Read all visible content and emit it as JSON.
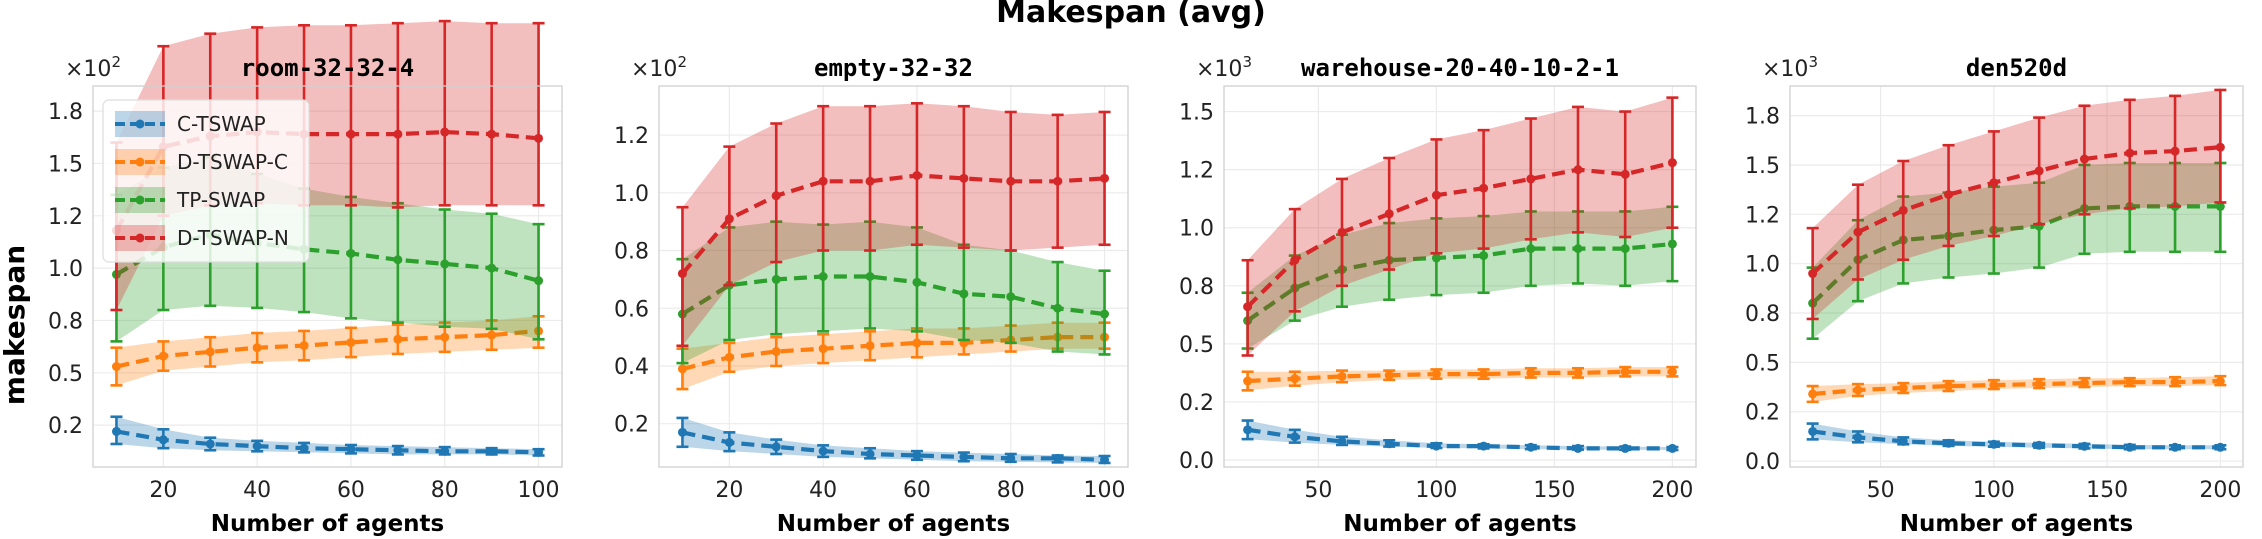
{
  "figure": {
    "suptitle": "Makespan (avg)",
    "ylabel": "makespan"
  },
  "legend": {
    "placement": "upper-left of first panel",
    "entries": [
      "C-TSWAP",
      "D-TSWAP-C",
      "TP-SWAP",
      "D-TSWAP-N"
    ]
  },
  "colors": {
    "C-TSWAP": "#1f77b4",
    "D-TSWAP-C": "#ff7f0e",
    "TP-SWAP": "#2ca02c",
    "D-TSWAP-N": "#d62728"
  },
  "chart_data": [
    {
      "type": "line",
      "title": "room-32-32-4",
      "xlabel": "Number of agents",
      "ylabel": "makespan",
      "multiplier_label": "×10",
      "multiplier_exp": "2",
      "grid": true,
      "x": [
        10,
        20,
        30,
        40,
        50,
        60,
        70,
        80,
        90,
        100
      ],
      "xticks": [
        20,
        40,
        60,
        80,
        100
      ],
      "xtick_labels": [
        "20",
        "40",
        "60",
        "80",
        "100"
      ],
      "xlim": [
        5,
        105
      ],
      "ylim": [
        0.05,
        1.87
      ],
      "yticks": [
        0.25,
        0.5,
        0.75,
        1.0,
        1.25,
        1.5,
        1.75
      ],
      "ytick_labels": [
        "0.2",
        "0.5",
        "0.8",
        "1.0",
        "1.2",
        "1.5",
        "1.8"
      ],
      "series": [
        {
          "name": "C-TSWAP",
          "values": [
            0.22,
            0.18,
            0.16,
            0.15,
            0.14,
            0.135,
            0.13,
            0.125,
            0.125,
            0.12
          ],
          "lower": [
            0.16,
            0.14,
            0.13,
            0.125,
            0.12,
            0.115,
            0.11,
            0.11,
            0.11,
            0.105
          ],
          "upper": [
            0.29,
            0.23,
            0.19,
            0.175,
            0.165,
            0.155,
            0.15,
            0.145,
            0.14,
            0.135
          ]
        },
        {
          "name": "D-TSWAP-C",
          "values": [
            0.53,
            0.58,
            0.6,
            0.62,
            0.63,
            0.645,
            0.66,
            0.67,
            0.68,
            0.7
          ],
          "lower": [
            0.44,
            0.51,
            0.53,
            0.55,
            0.56,
            0.575,
            0.59,
            0.6,
            0.61,
            0.62
          ],
          "upper": [
            0.62,
            0.65,
            0.67,
            0.69,
            0.7,
            0.715,
            0.73,
            0.74,
            0.75,
            0.77
          ]
        },
        {
          "name": "TP-SWAP",
          "values": [
            0.97,
            1.1,
            1.16,
            1.12,
            1.09,
            1.07,
            1.04,
            1.02,
            1.0,
            0.94
          ],
          "lower": [
            0.65,
            0.8,
            0.82,
            0.81,
            0.79,
            0.76,
            0.74,
            0.72,
            0.71,
            0.66
          ],
          "upper": [
            1.35,
            1.48,
            1.53,
            1.45,
            1.38,
            1.34,
            1.31,
            1.28,
            1.26,
            1.21
          ]
        },
        {
          "name": "D-TSWAP-N",
          "values": [
            1.18,
            1.58,
            1.63,
            1.65,
            1.64,
            1.64,
            1.64,
            1.65,
            1.64,
            1.62
          ],
          "lower": [
            0.8,
            1.25,
            1.3,
            1.31,
            1.3,
            1.3,
            1.29,
            1.3,
            1.3,
            1.3
          ],
          "upper": [
            1.6,
            2.06,
            2.12,
            2.15,
            2.16,
            2.16,
            2.17,
            2.18,
            2.17,
            2.17
          ]
        }
      ]
    },
    {
      "type": "line",
      "title": "empty-32-32",
      "xlabel": "Number of agents",
      "ylabel": "",
      "multiplier_label": "×10",
      "multiplier_exp": "2",
      "grid": true,
      "x": [
        10,
        20,
        30,
        40,
        50,
        60,
        70,
        80,
        90,
        100
      ],
      "xticks": [
        20,
        40,
        60,
        80,
        100
      ],
      "xtick_labels": [
        "20",
        "40",
        "60",
        "80",
        "100"
      ],
      "xlim": [
        5,
        105
      ],
      "ylim": [
        0.05,
        1.37
      ],
      "yticks": [
        0.2,
        0.4,
        0.6,
        0.8,
        1.0,
        1.2
      ],
      "ytick_labels": [
        "0.2",
        "0.4",
        "0.6",
        "0.8",
        "1.0",
        "1.2"
      ],
      "series": [
        {
          "name": "C-TSWAP",
          "values": [
            0.17,
            0.135,
            0.12,
            0.105,
            0.095,
            0.09,
            0.085,
            0.08,
            0.08,
            0.075
          ],
          "lower": [
            0.12,
            0.105,
            0.095,
            0.085,
            0.08,
            0.075,
            0.07,
            0.068,
            0.066,
            0.064
          ],
          "upper": [
            0.22,
            0.17,
            0.145,
            0.125,
            0.115,
            0.105,
            0.1,
            0.095,
            0.09,
            0.088
          ]
        },
        {
          "name": "D-TSWAP-C",
          "values": [
            0.39,
            0.43,
            0.45,
            0.46,
            0.47,
            0.48,
            0.48,
            0.49,
            0.5,
            0.5
          ],
          "lower": [
            0.32,
            0.38,
            0.4,
            0.41,
            0.42,
            0.43,
            0.44,
            0.45,
            0.46,
            0.46
          ],
          "upper": [
            0.46,
            0.48,
            0.5,
            0.51,
            0.52,
            0.53,
            0.53,
            0.54,
            0.55,
            0.55
          ]
        },
        {
          "name": "TP-SWAP",
          "values": [
            0.58,
            0.68,
            0.7,
            0.71,
            0.71,
            0.69,
            0.65,
            0.64,
            0.6,
            0.58
          ],
          "lower": [
            0.41,
            0.49,
            0.51,
            0.52,
            0.53,
            0.52,
            0.49,
            0.48,
            0.45,
            0.44
          ],
          "upper": [
            0.77,
            0.88,
            0.9,
            0.89,
            0.9,
            0.88,
            0.82,
            0.8,
            0.76,
            0.73
          ]
        },
        {
          "name": "D-TSWAP-N",
          "values": [
            0.72,
            0.91,
            0.99,
            1.04,
            1.04,
            1.06,
            1.05,
            1.04,
            1.04,
            1.05
          ],
          "lower": [
            0.47,
            0.68,
            0.76,
            0.8,
            0.8,
            0.82,
            0.81,
            0.8,
            0.81,
            0.82
          ],
          "upper": [
            0.95,
            1.16,
            1.24,
            1.3,
            1.3,
            1.31,
            1.3,
            1.28,
            1.27,
            1.28
          ]
        }
      ]
    },
    {
      "type": "line",
      "title": "warehouse-20-40-10-2-1",
      "xlabel": "Number of agents",
      "ylabel": "",
      "multiplier_label": "×10",
      "multiplier_exp": "3",
      "grid": true,
      "x": [
        20,
        40,
        60,
        80,
        100,
        120,
        140,
        160,
        180,
        200
      ],
      "xticks": [
        50,
        100,
        150,
        200
      ],
      "xtick_labels": [
        "50",
        "100",
        "150",
        "200"
      ],
      "xlim": [
        10,
        210
      ],
      "ylim": [
        -0.03,
        1.61
      ],
      "yticks": [
        0.0,
        0.25,
        0.5,
        0.75,
        1.0,
        1.25,
        1.5
      ],
      "ytick_labels": [
        "0.0",
        "0.2",
        "0.5",
        "0.8",
        "1.0",
        "1.2",
        "1.5"
      ],
      "series": [
        {
          "name": "C-TSWAP",
          "values": [
            0.13,
            0.1,
            0.08,
            0.07,
            0.06,
            0.06,
            0.055,
            0.05,
            0.05,
            0.05
          ],
          "lower": [
            0.09,
            0.075,
            0.065,
            0.058,
            0.052,
            0.05,
            0.047,
            0.045,
            0.044,
            0.043
          ],
          "upper": [
            0.17,
            0.13,
            0.1,
            0.085,
            0.072,
            0.068,
            0.064,
            0.06,
            0.058,
            0.056
          ]
        },
        {
          "name": "D-TSWAP-C",
          "values": [
            0.34,
            0.35,
            0.36,
            0.365,
            0.37,
            0.37,
            0.375,
            0.375,
            0.38,
            0.38
          ],
          "lower": [
            0.3,
            0.32,
            0.335,
            0.345,
            0.35,
            0.35,
            0.355,
            0.355,
            0.36,
            0.36
          ],
          "upper": [
            0.38,
            0.38,
            0.385,
            0.385,
            0.39,
            0.39,
            0.395,
            0.395,
            0.4,
            0.4
          ]
        },
        {
          "name": "TP-SWAP",
          "values": [
            0.6,
            0.74,
            0.82,
            0.86,
            0.87,
            0.88,
            0.91,
            0.91,
            0.91,
            0.93
          ],
          "lower": [
            0.48,
            0.6,
            0.66,
            0.69,
            0.71,
            0.72,
            0.75,
            0.76,
            0.75,
            0.77
          ],
          "upper": [
            0.72,
            0.88,
            0.97,
            1.02,
            1.04,
            1.05,
            1.07,
            1.07,
            1.07,
            1.09
          ]
        },
        {
          "name": "D-TSWAP-N",
          "values": [
            0.66,
            0.86,
            0.98,
            1.06,
            1.14,
            1.17,
            1.21,
            1.25,
            1.23,
            1.28
          ],
          "lower": [
            0.45,
            0.64,
            0.75,
            0.82,
            0.89,
            0.91,
            0.95,
            0.98,
            0.96,
            1.0
          ],
          "upper": [
            0.86,
            1.08,
            1.21,
            1.3,
            1.38,
            1.42,
            1.47,
            1.52,
            1.5,
            1.56
          ]
        }
      ]
    },
    {
      "type": "line",
      "title": "den520d",
      "xlabel": "Number of agents",
      "ylabel": "",
      "multiplier_label": "×10",
      "multiplier_exp": "3",
      "grid": true,
      "x": [
        20,
        40,
        60,
        80,
        100,
        120,
        140,
        160,
        180,
        200
      ],
      "xticks": [
        50,
        100,
        150,
        200
      ],
      "xtick_labels": [
        "50",
        "100",
        "150",
        "200"
      ],
      "xlim": [
        10,
        210
      ],
      "ylim": [
        -0.03,
        1.9
      ],
      "yticks": [
        0.0,
        0.25,
        0.5,
        0.75,
        1.0,
        1.25,
        1.5,
        1.75
      ],
      "ytick_labels": [
        "0.0",
        "0.2",
        "0.5",
        "0.8",
        "1.0",
        "1.2",
        "1.5",
        "1.8"
      ],
      "series": [
        {
          "name": "C-TSWAP",
          "values": [
            0.15,
            0.12,
            0.1,
            0.09,
            0.085,
            0.08,
            0.075,
            0.07,
            0.07,
            0.07
          ],
          "lower": [
            0.11,
            0.095,
            0.085,
            0.077,
            0.073,
            0.068,
            0.064,
            0.06,
            0.06,
            0.06
          ],
          "upper": [
            0.19,
            0.15,
            0.12,
            0.105,
            0.098,
            0.092,
            0.087,
            0.082,
            0.08,
            0.08
          ]
        },
        {
          "name": "D-TSWAP-C",
          "values": [
            0.34,
            0.36,
            0.37,
            0.38,
            0.385,
            0.39,
            0.395,
            0.4,
            0.4,
            0.405
          ],
          "lower": [
            0.3,
            0.33,
            0.345,
            0.355,
            0.365,
            0.37,
            0.375,
            0.38,
            0.38,
            0.385
          ],
          "upper": [
            0.38,
            0.39,
            0.395,
            0.405,
            0.41,
            0.415,
            0.42,
            0.42,
            0.425,
            0.43
          ]
        },
        {
          "name": "TP-SWAP",
          "values": [
            0.8,
            1.02,
            1.12,
            1.14,
            1.17,
            1.19,
            1.28,
            1.29,
            1.29,
            1.29
          ],
          "lower": [
            0.62,
            0.81,
            0.9,
            0.93,
            0.95,
            0.98,
            1.05,
            1.06,
            1.06,
            1.06
          ],
          "upper": [
            0.98,
            1.22,
            1.34,
            1.36,
            1.39,
            1.41,
            1.5,
            1.51,
            1.51,
            1.51
          ]
        },
        {
          "name": "D-TSWAP-N",
          "values": [
            0.95,
            1.16,
            1.27,
            1.35,
            1.41,
            1.47,
            1.53,
            1.56,
            1.57,
            1.59
          ],
          "lower": [
            0.72,
            0.92,
            1.02,
            1.09,
            1.14,
            1.2,
            1.25,
            1.28,
            1.29,
            1.31
          ],
          "upper": [
            1.18,
            1.4,
            1.52,
            1.6,
            1.67,
            1.74,
            1.8,
            1.83,
            1.85,
            1.88
          ]
        }
      ]
    }
  ]
}
